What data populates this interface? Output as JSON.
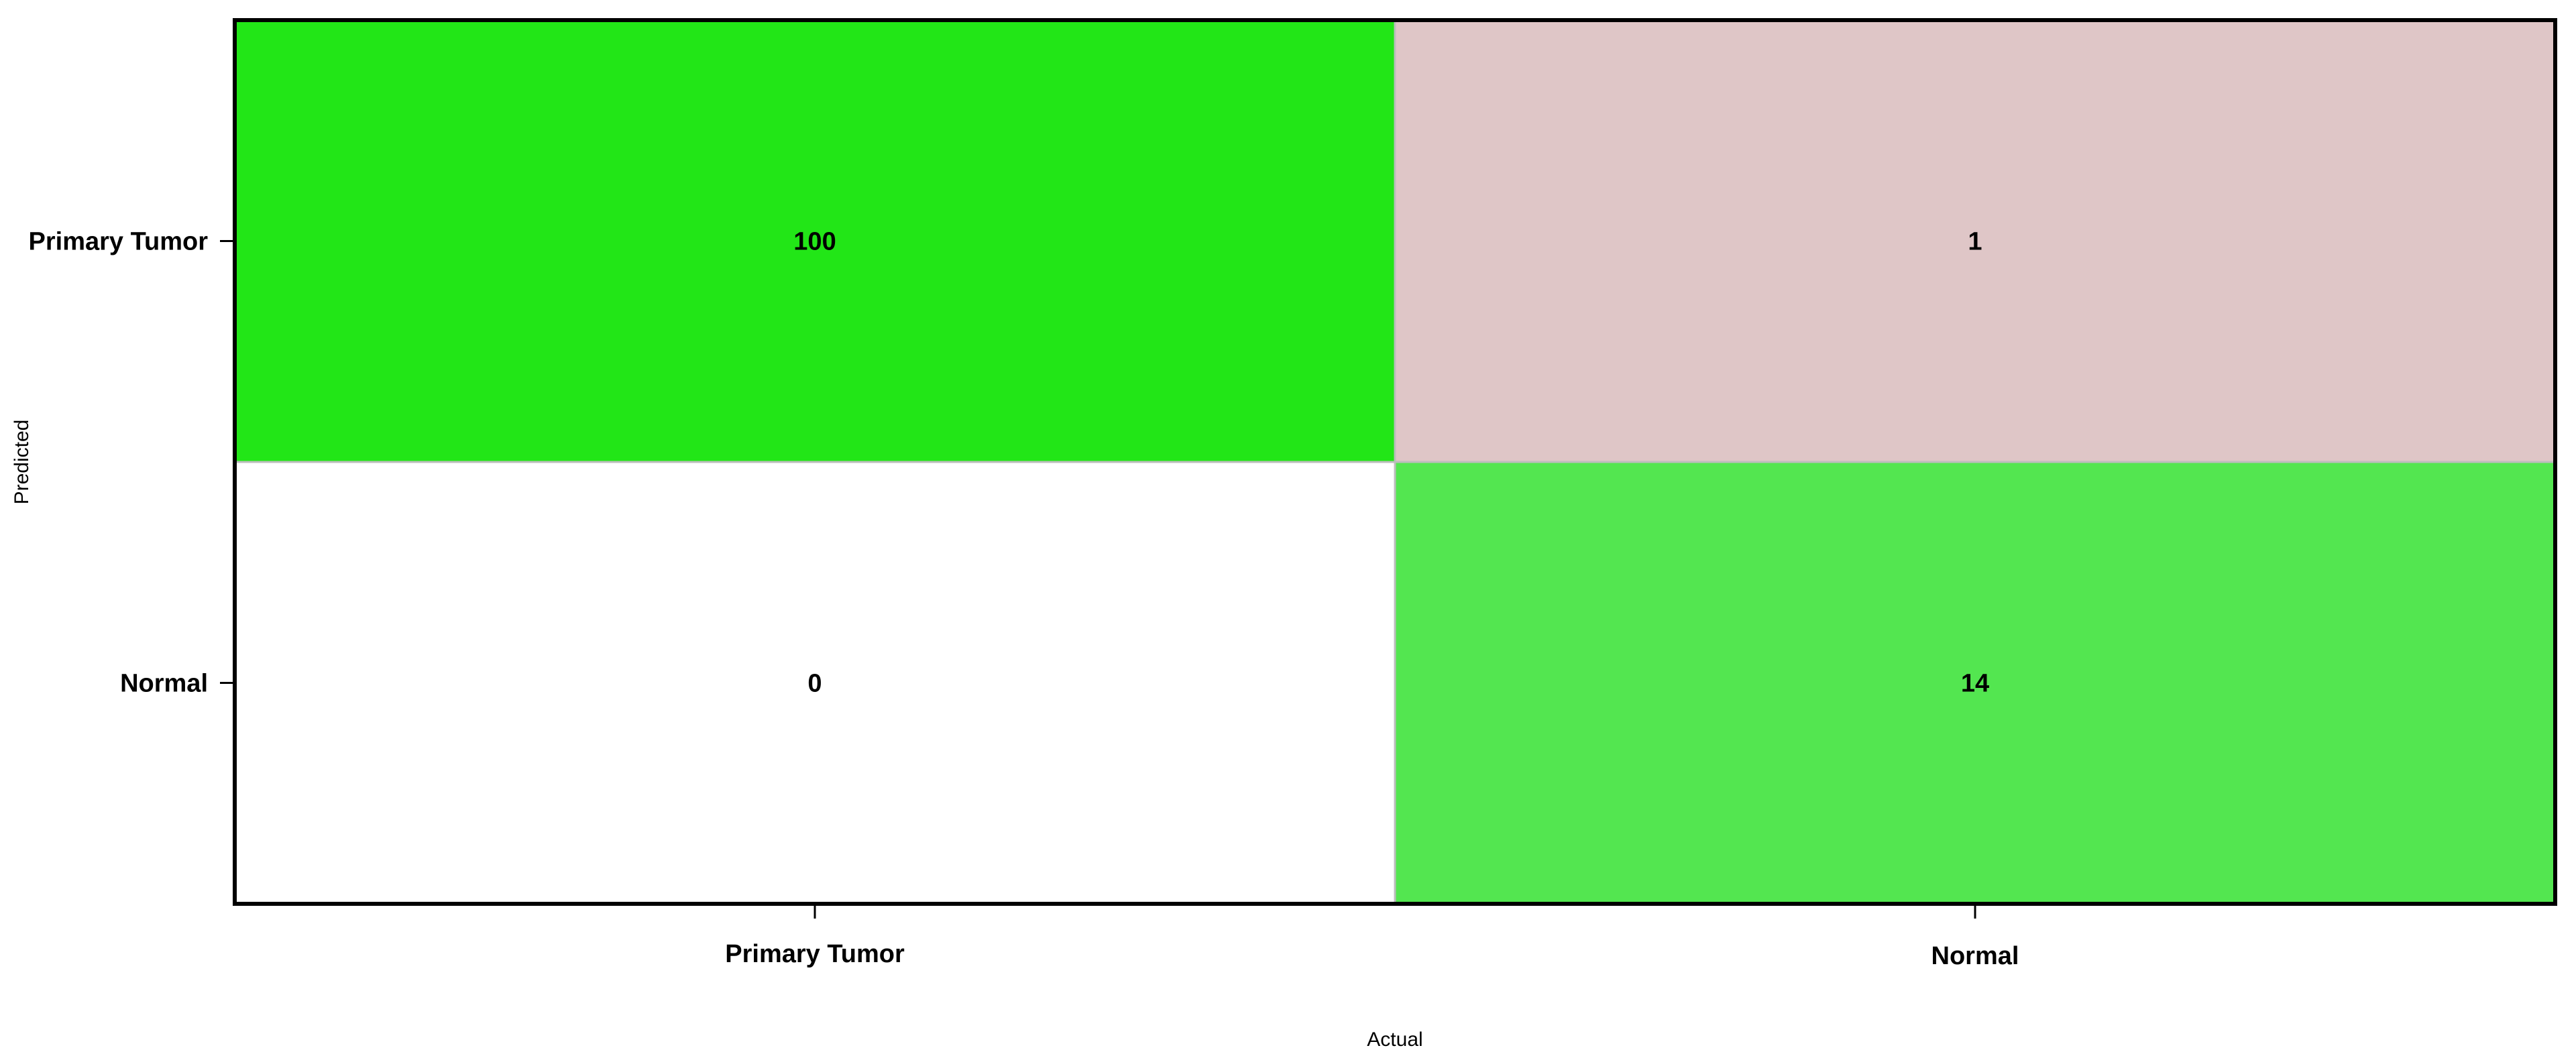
{
  "chart_data": {
    "type": "heatmap",
    "title": "",
    "xlabel": "Actual",
    "ylabel": "Predicted",
    "x_categories": [
      "Primary Tumor",
      "Normal"
    ],
    "y_categories": [
      "Primary Tumor",
      "Normal"
    ],
    "values": [
      [
        100,
        1
      ],
      [
        0,
        14
      ]
    ],
    "cell_colors": [
      [
        "#22e617",
        "#dfc6c7"
      ],
      [
        "#ffffff",
        "#53e650"
      ]
    ],
    "frame_color": "#000000",
    "cell_border_color": "#bdbdbd",
    "grid": false,
    "legend": "none"
  }
}
